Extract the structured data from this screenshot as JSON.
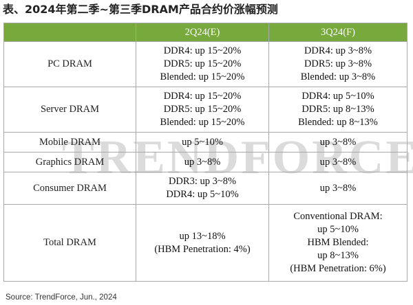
{
  "title": "表、2024年第二季~第三季DRAM产品合约价涨幅预测",
  "watermark": "TRENDFORCE",
  "columns": [
    "",
    "2Q24(E)",
    "3Q24(F)"
  ],
  "rows": [
    {
      "label": "PC DRAM",
      "q2": [
        "DDR4: up 15~20%",
        "DDR5: up 15~20%",
        "Blended: up 15~20%"
      ],
      "q3": [
        "DDR4: up 3~8%",
        "DDR5: up 3~8%",
        "Blended: up 3~8%"
      ]
    },
    {
      "label": "Server DRAM",
      "q2": [
        "DDR4: up 15~20%",
        "DDR5: up 15~20%",
        "Blended: up 15~20%"
      ],
      "q3": [
        "DDR4: up 5~10%",
        "DDR5: up 8~13%",
        "Blended: up 8~13%"
      ]
    },
    {
      "label": "Mobile DRAM",
      "q2": [
        "up 5~10%"
      ],
      "q3": [
        "up 3~8%"
      ]
    },
    {
      "label": "Graphics DRAM",
      "q2": [
        "up 3~8%"
      ],
      "q3": [
        "up 3~8%"
      ]
    },
    {
      "label": "Consumer DRAM",
      "q2": [
        "DDR3: up 3~8%",
        "DDR4: up 5~10%"
      ],
      "q3": [
        "up 3~8%"
      ]
    },
    {
      "label": "Total DRAM",
      "q2": [
        "up 13~18%",
        "(HBM Penetration: 4%)"
      ],
      "q3": [
        "Conventional DRAM:",
        "up 5~10%",
        "HBM Blended:",
        "up 8~13%",
        "(HBM Penetration: 6%)"
      ]
    }
  ],
  "source": "Source: TrendForce, Jun., 2024",
  "colors": {
    "header_bg": "#77a93c",
    "header_text": "#ffffff",
    "border": "#a8a8a8",
    "watermark": "#dbdbdb"
  }
}
